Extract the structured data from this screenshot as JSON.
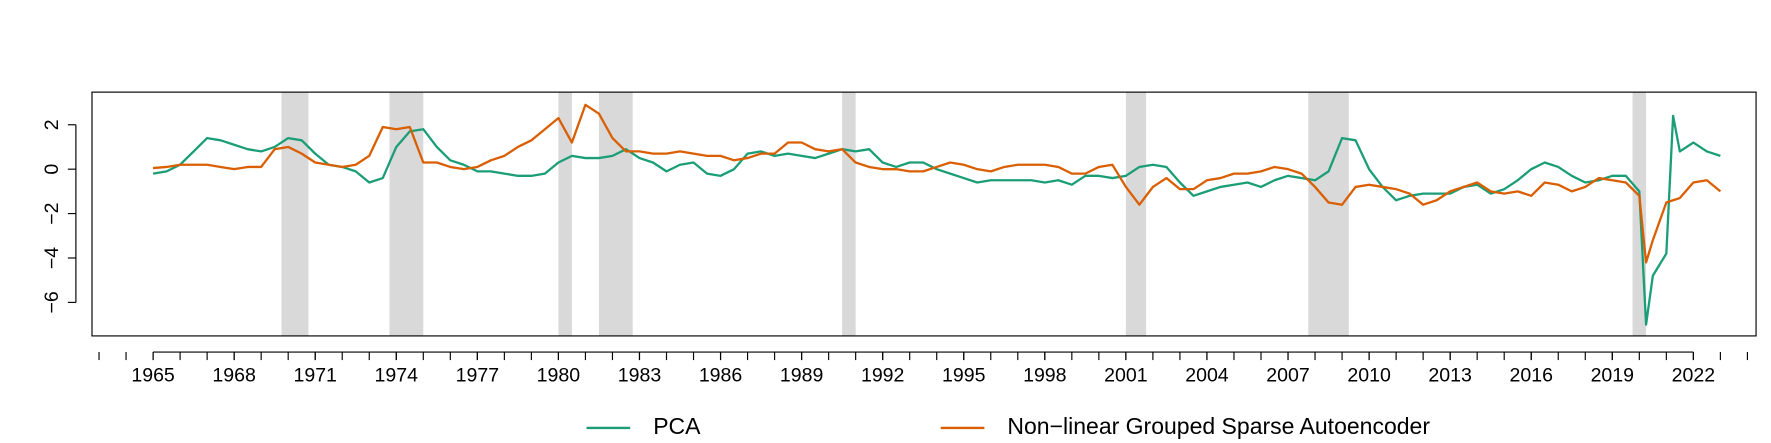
{
  "chart_data": {
    "type": "line",
    "x": [
      1965,
      1965.5,
      1966,
      1966.5,
      1967,
      1967.5,
      1968,
      1968.5,
      1969,
      1969.5,
      1970,
      1970.5,
      1971,
      1971.5,
      1972,
      1972.5,
      1973,
      1973.5,
      1974,
      1974.5,
      1975,
      1975.5,
      1976,
      1976.5,
      1977,
      1977.5,
      1978,
      1978.5,
      1979,
      1979.5,
      1980,
      1980.5,
      1981,
      1981.5,
      1982,
      1982.5,
      1983,
      1983.5,
      1984,
      1984.5,
      1985,
      1985.5,
      1986,
      1986.5,
      1987,
      1987.5,
      1988,
      1988.5,
      1989,
      1989.5,
      1990,
      1990.5,
      1991,
      1991.5,
      1992,
      1992.5,
      1993,
      1993.5,
      1994,
      1994.5,
      1995,
      1995.5,
      1996,
      1996.5,
      1997,
      1997.5,
      1998,
      1998.5,
      1999,
      1999.5,
      2000,
      2000.5,
      2001,
      2001.5,
      2002,
      2002.5,
      2003,
      2003.5,
      2004,
      2004.5,
      2005,
      2005.5,
      2006,
      2006.5,
      2007,
      2007.5,
      2008,
      2008.5,
      2009,
      2009.5,
      2010,
      2010.5,
      2011,
      2011.5,
      2012,
      2012.5,
      2013,
      2013.5,
      2014,
      2014.5,
      2015,
      2015.5,
      2016,
      2016.5,
      2017,
      2017.5,
      2018,
      2018.5,
      2019,
      2019.5,
      2020,
      2020.25,
      2020.5,
      2021,
      2021.25,
      2021.5,
      2022,
      2022.5,
      2023
    ],
    "series": [
      {
        "name": "PCA",
        "color": "#1b9e77",
        "values": [
          -0.2,
          -0.1,
          0.2,
          0.8,
          1.4,
          1.3,
          1.1,
          0.9,
          0.8,
          1.0,
          1.4,
          1.3,
          0.7,
          0.2,
          0.1,
          -0.1,
          -0.6,
          -0.4,
          1.0,
          1.7,
          1.8,
          1.0,
          0.4,
          0.2,
          -0.1,
          -0.1,
          -0.2,
          -0.3,
          -0.3,
          -0.2,
          0.3,
          0.6,
          0.5,
          0.5,
          0.6,
          0.9,
          0.5,
          0.3,
          -0.1,
          0.2,
          0.3,
          -0.2,
          -0.3,
          0.0,
          0.7,
          0.8,
          0.6,
          0.7,
          0.6,
          0.5,
          0.7,
          0.9,
          0.8,
          0.9,
          0.3,
          0.1,
          0.3,
          0.3,
          0.0,
          -0.2,
          -0.4,
          -0.6,
          -0.5,
          -0.5,
          -0.5,
          -0.5,
          -0.6,
          -0.5,
          -0.7,
          -0.3,
          -0.3,
          -0.4,
          -0.3,
          0.1,
          0.2,
          0.1,
          -0.6,
          -1.2,
          -1.0,
          -0.8,
          -0.7,
          -0.6,
          -0.8,
          -0.5,
          -0.3,
          -0.4,
          -0.5,
          -0.1,
          1.4,
          1.3,
          0.0,
          -0.8,
          -1.4,
          -1.2,
          -1.1,
          -1.1,
          -1.1,
          -0.8,
          -0.7,
          -1.1,
          -0.9,
          -0.5,
          0.0,
          0.3,
          0.1,
          -0.3,
          -0.6,
          -0.5,
          -0.3,
          -0.3,
          -1.0,
          -7.0,
          -4.8,
          -3.8,
          2.4,
          0.8,
          1.2,
          0.8,
          0.6
        ]
      },
      {
        "name": "Non−linear Grouped Sparse Autoencoder",
        "color": "#d95f02",
        "values": [
          0.05,
          0.1,
          0.2,
          0.2,
          0.2,
          0.1,
          0.0,
          0.1,
          0.1,
          0.9,
          1.0,
          0.7,
          0.3,
          0.2,
          0.1,
          0.2,
          0.6,
          1.9,
          1.8,
          1.9,
          0.3,
          0.3,
          0.1,
          0.0,
          0.1,
          0.4,
          0.6,
          1.0,
          1.3,
          1.8,
          2.3,
          1.2,
          2.9,
          2.5,
          1.4,
          0.8,
          0.8,
          0.7,
          0.7,
          0.8,
          0.7,
          0.6,
          0.6,
          0.4,
          0.5,
          0.7,
          0.7,
          1.2,
          1.2,
          0.9,
          0.8,
          0.9,
          0.3,
          0.1,
          0.0,
          0.0,
          -0.1,
          -0.1,
          0.1,
          0.3,
          0.2,
          0.0,
          -0.1,
          0.1,
          0.2,
          0.2,
          0.2,
          0.1,
          -0.2,
          -0.2,
          0.1,
          0.2,
          -0.8,
          -1.6,
          -0.8,
          -0.4,
          -0.9,
          -0.9,
          -0.5,
          -0.4,
          -0.2,
          -0.2,
          -0.1,
          0.1,
          0.0,
          -0.2,
          -0.8,
          -1.5,
          -1.6,
          -0.8,
          -0.7,
          -0.8,
          -0.9,
          -1.1,
          -1.6,
          -1.4,
          -1.0,
          -0.8,
          -0.6,
          -1.0,
          -1.1,
          -1.0,
          -1.2,
          -0.6,
          -0.7,
          -1.0,
          -0.8,
          -0.4,
          -0.5,
          -0.6,
          -1.2,
          -4.2,
          -3.2,
          -1.5,
          -1.4,
          -1.3,
          -0.6,
          -0.5,
          -1.0
        ]
      }
    ],
    "shaded_periods": [
      [
        1969.75,
        1970.75
      ],
      [
        1973.75,
        1975.0
      ],
      [
        1980.0,
        1980.5
      ],
      [
        1981.5,
        1982.75
      ],
      [
        1990.5,
        1991.0
      ],
      [
        2001.0,
        2001.75
      ],
      [
        2007.75,
        2009.25
      ],
      [
        2019.75,
        2020.25
      ]
    ],
    "shade_color": "#d9d9d9",
    "xlim": [
      1962.74,
      2024.32
    ],
    "xticks": [
      1965,
      1968,
      1971,
      1974,
      1977,
      1980,
      1983,
      1986,
      1989,
      1992,
      1995,
      1998,
      2001,
      2004,
      2007,
      2010,
      2013,
      2016,
      2019,
      2022
    ],
    "xminor_step": 1,
    "ylim": [
      -7.51,
      3.47
    ],
    "yticks": [
      {
        "value": -6,
        "label": "−6"
      },
      {
        "value": -4,
        "label": "−4"
      },
      {
        "value": -2,
        "label": "−2"
      },
      0,
      2
    ],
    "legend": "bottom"
  }
}
